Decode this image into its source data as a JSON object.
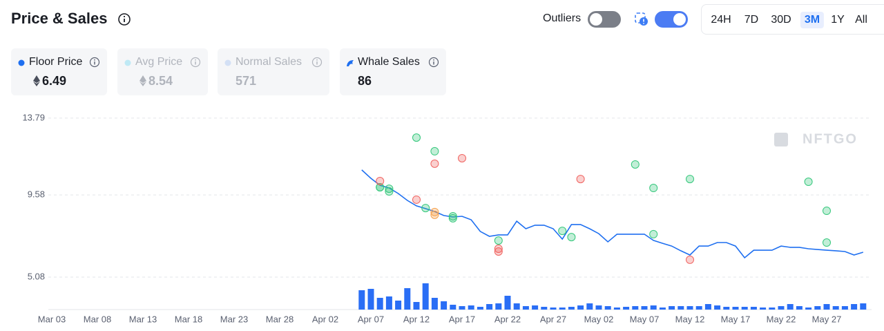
{
  "header": {
    "title": "Price & Sales",
    "outliers_label": "Outliers",
    "timeframes": [
      "24H",
      "7D",
      "30D",
      "3M",
      "1Y",
      "All"
    ],
    "active_timeframe": 3
  },
  "stats": [
    {
      "label": "Floor Price",
      "value": 6.49,
      "color": "#1e6ff0",
      "muted": false
    },
    {
      "label": "Avg Price",
      "value": 8.54,
      "color": "#bfe9f5",
      "muted": true
    },
    {
      "label": "Normal Sales",
      "value": 571,
      "color": "#d3e0f5",
      "muted": true
    },
    {
      "label": "Whale Sales",
      "value": 86,
      "color": "#1e6ff0",
      "muted": false
    }
  ],
  "watermark": "NFTGO",
  "chart_data": {
    "type": "line",
    "x": [
      "Apr 06",
      "Apr 07",
      "Apr 08",
      "Apr 09",
      "Apr 10",
      "Apr 11",
      "Apr 12",
      "Apr 13",
      "Apr 14",
      "Apr 15",
      "Apr 16",
      "Apr 17",
      "Apr 18",
      "Apr 19",
      "Apr 20",
      "Apr 21",
      "Apr 22",
      "Apr 23",
      "Apr 24",
      "Apr 25",
      "Apr 26",
      "Apr 27",
      "Apr 28",
      "Apr 29",
      "Apr 30",
      "May 01",
      "May 02",
      "May 03",
      "May 04",
      "May 05",
      "May 06",
      "May 07",
      "May 08",
      "May 09",
      "May 10",
      "May 11",
      "May 12",
      "May 13",
      "May 14",
      "May 15",
      "May 16",
      "May 17",
      "May 18",
      "May 19",
      "May 20",
      "May 21",
      "May 22",
      "May 23",
      "May 24",
      "May 25",
      "May 26",
      "May 27",
      "May 28",
      "May 29",
      "May 30",
      "May 31"
    ],
    "series": [
      {
        "name": "Floor Price",
        "color": "#1e6ff0",
        "values": [
          10.95,
          10.49,
          10.11,
          9.96,
          9.66,
          9.28,
          8.98,
          8.83,
          8.67,
          8.45,
          8.37,
          8.41,
          8.22,
          7.58,
          7.31,
          7.39,
          7.39,
          8.14,
          7.73,
          7.92,
          7.92,
          7.73,
          7.16,
          7.96,
          7.96,
          7.73,
          7.46,
          7.01,
          7.43,
          7.43,
          7.43,
          7.43,
          7.09,
          6.93,
          6.78,
          6.52,
          6.29,
          6.78,
          6.78,
          6.97,
          6.97,
          6.78,
          6.14,
          6.55,
          6.55,
          6.55,
          6.78,
          6.71,
          6.71,
          6.63,
          6.59,
          6.55,
          6.52,
          6.48,
          6.29,
          6.44
        ]
      }
    ],
    "volume": {
      "color": "#2a6ef5",
      "values": [
        28,
        30,
        17,
        19,
        13,
        31,
        11,
        38,
        17,
        12,
        7,
        5,
        6,
        4,
        8,
        9,
        20,
        9,
        5,
        6,
        4,
        3,
        3,
        4,
        6,
        9,
        6,
        5,
        3,
        4,
        5,
        5,
        6,
        3,
        5,
        5,
        5,
        5,
        8,
        6,
        4,
        4,
        4,
        4,
        3,
        3,
        5,
        8,
        5,
        3,
        5,
        8,
        5,
        5,
        8,
        9
      ]
    },
    "scatter": [
      {
        "color": "#34c77b",
        "x": [
          "Apr 12",
          "Apr 14",
          "Apr 08",
          "Apr 08",
          "Apr 09",
          "Apr 09",
          "Apr 13",
          "Apr 16",
          "Apr 16",
          "Apr 21",
          "Apr 28",
          "Apr 29",
          "May 06",
          "May 08",
          "May 08",
          "May 12",
          "May 25",
          "May 27",
          "May 27"
        ],
        "values": [
          12.72,
          11.97,
          10.0,
          10.0,
          9.92,
          9.77,
          8.86,
          8.41,
          8.3,
          7.08,
          7.61,
          7.27,
          11.25,
          9.96,
          7.43,
          10.45,
          10.3,
          8.71,
          6.97
        ]
      },
      {
        "color": "#f0625f",
        "x": [
          "Apr 08",
          "Apr 14",
          "Apr 17",
          "Apr 12",
          "Apr 30",
          "Apr 21",
          "Apr 21",
          "May 12"
        ],
        "values": [
          10.34,
          11.29,
          11.59,
          9.32,
          10.45,
          6.63,
          6.48,
          6.03
        ]
      },
      {
        "color": "#f5a04a",
        "x": [
          "Apr 14",
          "Apr 14"
        ],
        "values": [
          8.64,
          8.49
        ]
      }
    ],
    "ylim": [
      3.3,
      14.2
    ],
    "yticks": [
      5.08,
      9.58,
      13.79
    ],
    "xticks": [
      "Mar 03",
      "Mar 08",
      "Mar 13",
      "Mar 18",
      "Mar 23",
      "Mar 28",
      "Apr 02",
      "Apr 07",
      "Apr 12",
      "Apr 17",
      "Apr 22",
      "Apr 27",
      "May 02",
      "May 07",
      "May 12",
      "May 17",
      "May 22",
      "May 27"
    ],
    "grid": true
  }
}
